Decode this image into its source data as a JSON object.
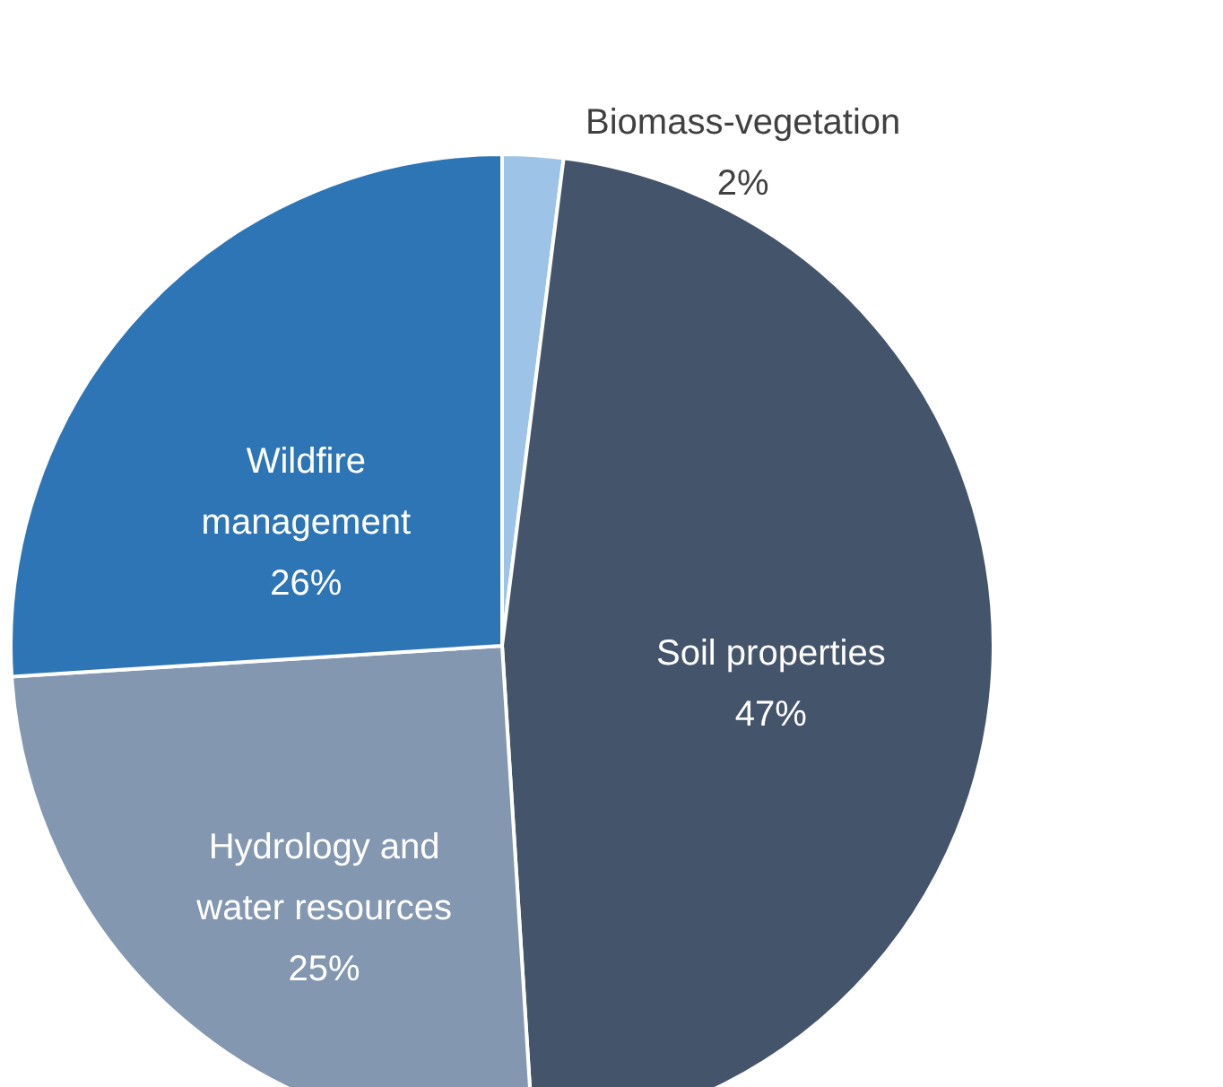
{
  "chart_data": {
    "type": "pie",
    "categories": [
      "Biomass-vegetation",
      "Soil properties",
      "Hydrology and water resources",
      "Wildfire management"
    ],
    "values": [
      2,
      47,
      25,
      26
    ],
    "colors": [
      "#9dc3e6",
      "#44546a",
      "#8497b0",
      "#2e75b6"
    ],
    "value_labels": [
      "2%",
      "47%",
      "25%",
      "26%"
    ],
    "legend": false
  }
}
